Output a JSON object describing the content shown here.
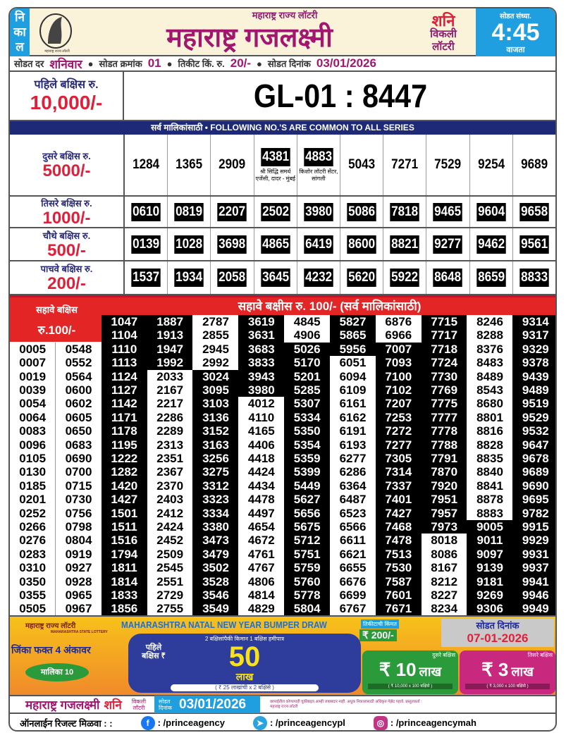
{
  "header": {
    "nikal": [
      "नि",
      "का",
      "ल"
    ],
    "logo_caption": "महाराष्ट्र राज्य लॉटरी",
    "subtitle": "महाराष्ट्र राज्य लॉटरी",
    "title": "महाराष्ट्र गजलक्ष्मी",
    "day": "शनि",
    "weekly": "विकली",
    "lottery": "लॉटरी",
    "draw_time_label": "सोडत संध्या.",
    "draw_time": "4:45",
    "time_suffix": "वाजता"
  },
  "info": {
    "draw_day_label": "सोडत दर",
    "draw_day": "शनिवार",
    "draw_no_label": "सोडत क्रमांक",
    "draw_no": "01",
    "price_label": "तिकीट किं. रु.",
    "price": "20/-",
    "date_label": "सोडत दिनांक",
    "date": "03/01/2026"
  },
  "first_prize": {
    "label": "पहिले बक्षिस रु.",
    "amount": "10,000/-",
    "number": "GL-01 : 8447"
  },
  "banner": "सर्व मालिकांसाठी  •  FOLLOWING NO.'S ARE COMMON TO ALL SERIES",
  "prizes": [
    {
      "label": "दुसरे बक्षिस रु.",
      "amount": "5000/-",
      "numbers": [
        {
          "n": "1284"
        },
        {
          "n": "1365"
        },
        {
          "n": "2909"
        },
        {
          "n": "4381",
          "agent": "श्री सिद्धि समर्थ एजेंसी, दादर - मुंबई"
        },
        {
          "n": "4883",
          "agent": "किशोर लॉटरी सेंटर, सांगली"
        },
        {
          "n": "5043"
        },
        {
          "n": "7271"
        },
        {
          "n": "7529"
        },
        {
          "n": "9254"
        },
        {
          "n": "9689"
        }
      ]
    },
    {
      "label": "तिसरे बक्षिस रु.",
      "amount": "1000/-",
      "numbers": [
        {
          "n": "0610"
        },
        {
          "n": "0819"
        },
        {
          "n": "2207"
        },
        {
          "n": "2502"
        },
        {
          "n": "3980"
        },
        {
          "n": "5086"
        },
        {
          "n": "7818"
        },
        {
          "n": "9465"
        },
        {
          "n": "9604"
        },
        {
          "n": "9658"
        }
      ]
    },
    {
      "label": "चौथे बक्षिस रु.",
      "amount": "500/-",
      "numbers": [
        {
          "n": "0139"
        },
        {
          "n": "1028"
        },
        {
          "n": "3698"
        },
        {
          "n": "4865"
        },
        {
          "n": "6419"
        },
        {
          "n": "8600"
        },
        {
          "n": "8821"
        },
        {
          "n": "9277"
        },
        {
          "n": "9462"
        },
        {
          "n": "9561"
        }
      ]
    },
    {
      "label": "पाचवे बक्षिस रु.",
      "amount": "200/-",
      "numbers": [
        {
          "n": "1537"
        },
        {
          "n": "1934"
        },
        {
          "n": "2058"
        },
        {
          "n": "3645"
        },
        {
          "n": "4232"
        },
        {
          "n": "5620"
        },
        {
          "n": "5922"
        },
        {
          "n": "8648"
        },
        {
          "n": "8659"
        },
        {
          "n": "8833"
        }
      ]
    }
  ],
  "sixth": {
    "label": "सहावे बक्षिस",
    "amount": "रु.100/-",
    "heading": "सहावे बक्षीस रु. 100/-   (सर्व मालिकांसाठी)",
    "columns": [
      [
        "0005",
        "0007",
        "0019",
        "0039",
        "0054",
        "0064",
        "0083",
        "0096",
        "0105",
        "0130",
        "0185",
        "0201",
        "0252",
        "0266",
        "0276",
        "0283",
        "0310",
        "0350",
        "0355",
        "0505"
      ],
      [
        "0548",
        "0552",
        "0564",
        "0600",
        "0602",
        "0605",
        "0650",
        "0683",
        "0690",
        "0700",
        "0715",
        "0730",
        "0756",
        "0798",
        "0804",
        "0919",
        "0927",
        "0928",
        "0965",
        "0967"
      ],
      [
        "1047",
        "1104",
        "1110",
        "1113",
        "1124",
        "1127",
        "1142",
        "1171",
        "1178",
        "1195",
        "1222",
        "1282",
        "1420",
        "1427",
        "1501",
        "1511",
        "1516",
        "1794",
        "1811",
        "1814",
        "1833",
        "1856"
      ],
      [
        "1887",
        "1913",
        "1947",
        "1992",
        "2033",
        "2167",
        "2217",
        "2286",
        "2289",
        "2313",
        "2351",
        "2367",
        "2370",
        "2403",
        "2412",
        "2424",
        "2452",
        "2509",
        "2545",
        "2551",
        "2729",
        "2755"
      ],
      [
        "2787",
        "2855",
        "2945",
        "2992",
        "3024",
        "3095",
        "3103",
        "3136",
        "3152",
        "3163",
        "3256",
        "3275",
        "3312",
        "3323",
        "3334",
        "3380",
        "3473",
        "3479",
        "3502",
        "3528",
        "3546",
        "3549"
      ],
      [
        "3619",
        "3631",
        "3683",
        "3833",
        "3943",
        "3980",
        "4012",
        "4110",
        "4165",
        "4406",
        "4418",
        "4424",
        "4434",
        "4478",
        "4497",
        "4654",
        "4672",
        "4761",
        "4767",
        "4806",
        "4814",
        "4829"
      ],
      [
        "4845",
        "4906",
        "5026",
        "5170",
        "5201",
        "5285",
        "5307",
        "5334",
        "5350",
        "5354",
        "5359",
        "5399",
        "5449",
        "5627",
        "5656",
        "5675",
        "5712",
        "5751",
        "5759",
        "5760",
        "5778",
        "5804"
      ],
      [
        "5827",
        "5865",
        "5956",
        "6051",
        "6094",
        "6109",
        "6161",
        "6162",
        "6191",
        "6193",
        "6277",
        "6286",
        "6364",
        "6487",
        "6523",
        "6566",
        "6611",
        "6621",
        "6655",
        "6676",
        "6699",
        "6767"
      ],
      [
        "6876",
        "6966",
        "7007",
        "7093",
        "7100",
        "7102",
        "7207",
        "7253",
        "7272",
        "7277",
        "7305",
        "7314",
        "7337",
        "7401",
        "7427",
        "7468",
        "7478",
        "7513",
        "7530",
        "7587",
        "7601",
        "7671"
      ],
      [
        "7715",
        "7717",
        "7718",
        "7724",
        "7730",
        "7769",
        "7775",
        "7777",
        "7778",
        "7788",
        "7791",
        "7870",
        "7920",
        "7951",
        "7957",
        "7973",
        "8018",
        "8086",
        "8167",
        "8212",
        "8227",
        "8234"
      ],
      [
        "8246",
        "8288",
        "8376",
        "8483",
        "8489",
        "8543",
        "8680",
        "8801",
        "8816",
        "8828",
        "8835",
        "8840",
        "8841",
        "8878",
        "8883",
        "9005",
        "9011",
        "9097",
        "9139",
        "9181",
        "9269",
        "9306"
      ],
      [
        "9314",
        "9317",
        "9329",
        "9378",
        "9439",
        "9489",
        "9519",
        "9529",
        "9532",
        "9647",
        "9678",
        "9689",
        "9690",
        "9695",
        "9782",
        "9915",
        "9929",
        "9931",
        "9937",
        "9941",
        "9946",
        "9949"
      ]
    ]
  },
  "promo": {
    "state_lottery": "महाराष्ट्र राज्य लॉटरी",
    "state_lottery_en": "MAHARASHTRA STATE LOTTERY",
    "title": "MAHARASHTRA NATAL NEW YEAR BUMPER DRAW",
    "win_text": "जिंका फक्त 4 अंकावर",
    "series": "मालिका 10",
    "guarantee": "2 बक्षिसांपैकी किमान 1 बक्षिस हमीपात्र",
    "first_label": "पहिले बक्षिस ₹",
    "first_amount": "50",
    "first_unit": "लाख",
    "first_split": "( ₹ 25 लाखांची x 2 बक्षिसे )",
    "ticket_price_label": "तिकीटाची किंमत",
    "ticket_price": "₹ 200/-",
    "draw_date_label": "सोडत दिनांक",
    "draw_date": "07-01-2026",
    "second_label": "दुसरे बक्षिस",
    "second_amount": "₹ 10",
    "second_unit": "लाख",
    "second_split": "( ₹ 10,000 x 100 बक्षिसे )",
    "third_label": "तिसरे बक्षिस",
    "third_amount": "₹ 3",
    "third_unit": "लाख",
    "third_split": "( ₹ 3,000 x 100 बक्षिसे )"
  },
  "bottom": {
    "title": "महाराष्ट्र गजलक्ष्मी",
    "day": "शनि",
    "weekly": "विकली",
    "lottery": "लॉटरी",
    "date_label_1": "सोडत",
    "date_label_2": "दिनांक",
    "date": "03/01/2026",
    "disclaimer": "छापाईतील कोणत्याही चुकीबद्दल आम्ही जबाबदार नाही. अधुक निकालासाठी अधिकृत गॅझेट पहावे. प्रस्तुतकर्ता : महाराष्ट्र राज्य लॉटरी"
  },
  "social": {
    "label": "ऑनलाईन रिजल्ट मिळवा : :",
    "facebook": ": /princeagency",
    "telegram": ": /princeagencypl",
    "instagram": ": /princeagencymah",
    "colors": {
      "facebook": "#1877f2",
      "telegram": "#2aa3df",
      "instagram": "#c13584"
    }
  },
  "colors": {
    "brand": "#a3166f",
    "red": "#e32526",
    "blue": "#1f9fe0",
    "navy": "#1e2a78"
  }
}
